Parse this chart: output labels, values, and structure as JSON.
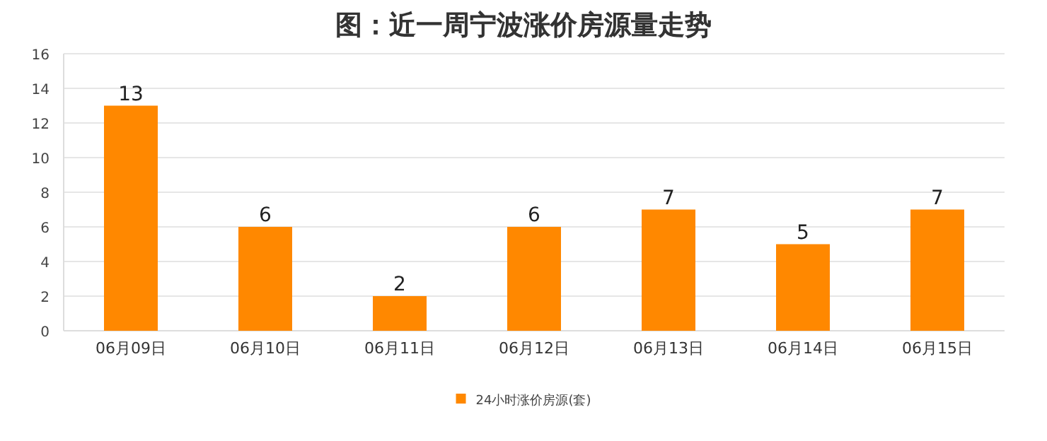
{
  "chart_data": {
    "type": "bar",
    "title": "图：近一周宁波涨价房源量走势",
    "categories": [
      "06月09日",
      "06月10日",
      "06月11日",
      "06月12日",
      "06月13日",
      "06月14日",
      "06月15日"
    ],
    "series": [
      {
        "name": "24小时涨价房源(套)",
        "color": "#ff8800",
        "values": [
          13,
          6,
          2,
          6,
          7,
          5,
          7
        ]
      }
    ],
    "ylim": [
      0,
      16
    ],
    "yticks": [
      0,
      2,
      4,
      6,
      8,
      10,
      12,
      14,
      16
    ],
    "grid": "y",
    "data_labels": true,
    "legend": "bottom"
  }
}
